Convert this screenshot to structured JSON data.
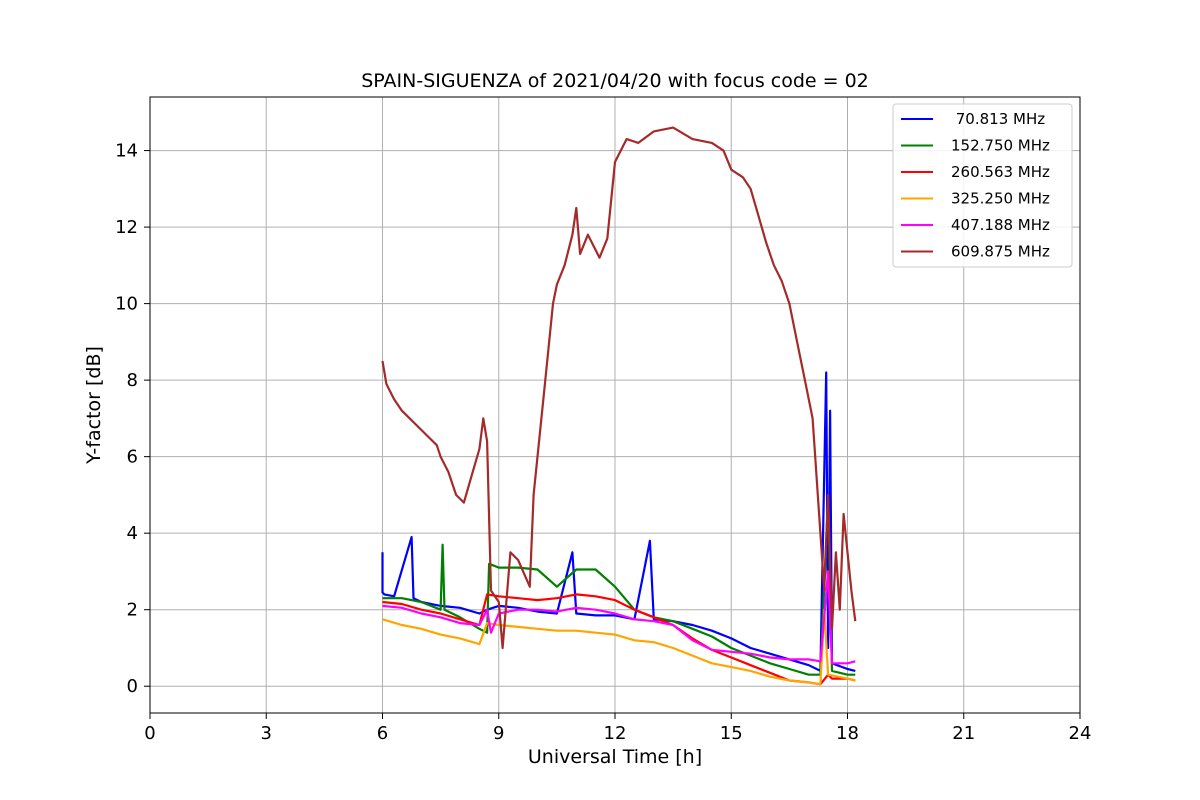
{
  "chart_data": {
    "type": "line",
    "title": "SPAIN-SIGUENZA of 2021/04/20 with focus code = 02",
    "xlabel": "Universal Time [h]",
    "ylabel": "Y-factor [dB]",
    "xlim": [
      0,
      24
    ],
    "ylim": [
      -0.7,
      15.4
    ],
    "xticks": [
      0,
      3,
      6,
      9,
      12,
      15,
      18,
      21,
      24
    ],
    "yticks": [
      0,
      2,
      4,
      6,
      8,
      10,
      12,
      14
    ],
    "grid": true,
    "legend_position": "top-right",
    "series": [
      {
        "name": " 70.813 MHz",
        "color": "#0000ff",
        "x": [
          6.0,
          6.0,
          6.05,
          6.3,
          6.75,
          6.8,
          7.0,
          7.5,
          8.0,
          8.5,
          8.7,
          9.0,
          9.5,
          10.0,
          10.5,
          10.9,
          11.0,
          11.5,
          12.0,
          12.5,
          12.9,
          13.0,
          13.5,
          14.0,
          14.5,
          15.0,
          15.5,
          16.0,
          16.5,
          17.0,
          17.3,
          17.45,
          17.5,
          17.55,
          17.6,
          18.0,
          18.2
        ],
        "y": [
          3.5,
          2.45,
          2.4,
          2.35,
          3.9,
          2.3,
          2.2,
          2.1,
          2.05,
          1.9,
          2.0,
          2.1,
          2.05,
          1.95,
          1.9,
          3.5,
          1.9,
          1.85,
          1.85,
          1.75,
          3.8,
          1.75,
          1.7,
          1.6,
          1.45,
          1.25,
          1.0,
          0.85,
          0.7,
          0.55,
          0.4,
          8.2,
          1.0,
          7.2,
          0.6,
          0.45,
          0.4
        ]
      },
      {
        "name": "152.750 MHz",
        "color": "#008000",
        "x": [
          6.0,
          6.5,
          7.0,
          7.5,
          7.55,
          7.6,
          8.0,
          8.5,
          8.7,
          8.75,
          9.0,
          9.5,
          10.0,
          10.5,
          11.0,
          11.5,
          12.0,
          12.5,
          13.0,
          13.5,
          14.0,
          14.5,
          15.0,
          15.5,
          16.0,
          16.5,
          17.0,
          17.3,
          17.5,
          17.6,
          18.0,
          18.2
        ],
        "y": [
          2.3,
          2.3,
          2.2,
          2.0,
          3.7,
          2.0,
          1.8,
          1.5,
          1.4,
          3.2,
          3.1,
          3.1,
          3.05,
          2.6,
          3.05,
          3.05,
          2.6,
          2.0,
          1.8,
          1.7,
          1.5,
          1.3,
          1.0,
          0.8,
          0.6,
          0.45,
          0.3,
          0.3,
          5.0,
          0.4,
          0.3,
          0.3
        ]
      },
      {
        "name": "260.563 MHz",
        "color": "#ff0000",
        "x": [
          6.0,
          6.5,
          7.0,
          7.5,
          8.0,
          8.5,
          8.7,
          9.0,
          9.5,
          10.0,
          10.5,
          11.0,
          11.5,
          12.0,
          12.5,
          13.0,
          13.5,
          14.0,
          14.5,
          15.0,
          15.5,
          16.0,
          16.5,
          17.0,
          17.3,
          17.5,
          17.6,
          18.0,
          18.2
        ],
        "y": [
          2.2,
          2.15,
          2.0,
          1.9,
          1.75,
          1.6,
          2.4,
          2.35,
          2.3,
          2.25,
          2.3,
          2.4,
          2.35,
          2.25,
          2.0,
          1.8,
          1.6,
          1.25,
          0.95,
          0.75,
          0.55,
          0.35,
          0.15,
          0.1,
          0.05,
          0.3,
          0.2,
          0.2,
          0.15
        ]
      },
      {
        "name": "325.250 MHz",
        "color": "#ffa500",
        "x": [
          6.0,
          6.5,
          7.0,
          7.5,
          8.0,
          8.5,
          8.7,
          9.0,
          9.5,
          10.0,
          10.5,
          11.0,
          11.5,
          12.0,
          12.5,
          13.0,
          13.5,
          14.0,
          14.5,
          15.0,
          15.5,
          16.0,
          16.5,
          17.0,
          17.3,
          17.4,
          17.5,
          18.0,
          18.2
        ],
        "y": [
          1.75,
          1.6,
          1.5,
          1.35,
          1.25,
          1.1,
          1.65,
          1.6,
          1.55,
          1.5,
          1.45,
          1.45,
          1.4,
          1.35,
          1.2,
          1.15,
          1.0,
          0.8,
          0.6,
          0.5,
          0.4,
          0.25,
          0.15,
          0.1,
          0.05,
          2.0,
          0.3,
          0.2,
          0.15
        ]
      },
      {
        "name": "407.188 MHz",
        "color": "#ff00ff",
        "x": [
          6.0,
          6.5,
          7.0,
          7.5,
          8.0,
          8.5,
          8.7,
          8.8,
          9.0,
          9.5,
          10.0,
          10.5,
          11.0,
          11.5,
          12.0,
          12.5,
          13.0,
          13.5,
          14.0,
          14.5,
          15.0,
          15.5,
          16.0,
          16.5,
          17.0,
          17.3,
          17.5,
          17.6,
          18.0,
          18.2
        ],
        "y": [
          2.1,
          2.05,
          1.9,
          1.8,
          1.65,
          1.6,
          2.0,
          1.4,
          1.9,
          2.0,
          2.0,
          1.95,
          2.05,
          2.0,
          1.9,
          1.75,
          1.7,
          1.6,
          1.2,
          0.95,
          0.9,
          0.85,
          0.75,
          0.7,
          0.7,
          0.65,
          3.0,
          0.6,
          0.6,
          0.65
        ]
      },
      {
        "name": "609.875 MHz",
        "color": "#a52a2a",
        "x": [
          6.0,
          6.1,
          6.3,
          6.5,
          6.8,
          7.0,
          7.2,
          7.4,
          7.5,
          7.7,
          7.9,
          8.1,
          8.3,
          8.5,
          8.6,
          8.7,
          8.8,
          9.0,
          9.1,
          9.3,
          9.5,
          9.8,
          9.9,
          10.1,
          10.2,
          10.4,
          10.5,
          10.7,
          10.9,
          11.0,
          11.1,
          11.3,
          11.6,
          11.8,
          12.0,
          12.3,
          12.6,
          13.0,
          13.5,
          14.0,
          14.5,
          14.8,
          15.0,
          15.3,
          15.5,
          15.7,
          15.9,
          16.1,
          16.3,
          16.5,
          16.7,
          16.9,
          17.1,
          17.3,
          17.4,
          17.5,
          17.6,
          17.7,
          17.8,
          17.9,
          18.0,
          18.1,
          18.2
        ],
        "y": [
          8.5,
          7.9,
          7.5,
          7.2,
          6.9,
          6.7,
          6.5,
          6.3,
          6.0,
          5.6,
          5.0,
          4.8,
          5.5,
          6.2,
          7.0,
          6.4,
          2.5,
          2.2,
          1.0,
          3.5,
          3.3,
          2.6,
          5.0,
          7.0,
          8.0,
          10.0,
          10.5,
          11.0,
          11.8,
          12.5,
          11.3,
          11.8,
          11.2,
          11.7,
          13.7,
          14.3,
          14.2,
          14.5,
          14.6,
          14.3,
          14.2,
          14.0,
          13.5,
          13.3,
          13.0,
          12.3,
          11.6,
          11.0,
          10.6,
          10.0,
          9.0,
          8.0,
          7.0,
          4.0,
          2.5,
          5.0,
          1.5,
          3.5,
          2.0,
          4.5,
          3.5,
          2.5,
          1.7
        ]
      }
    ]
  }
}
